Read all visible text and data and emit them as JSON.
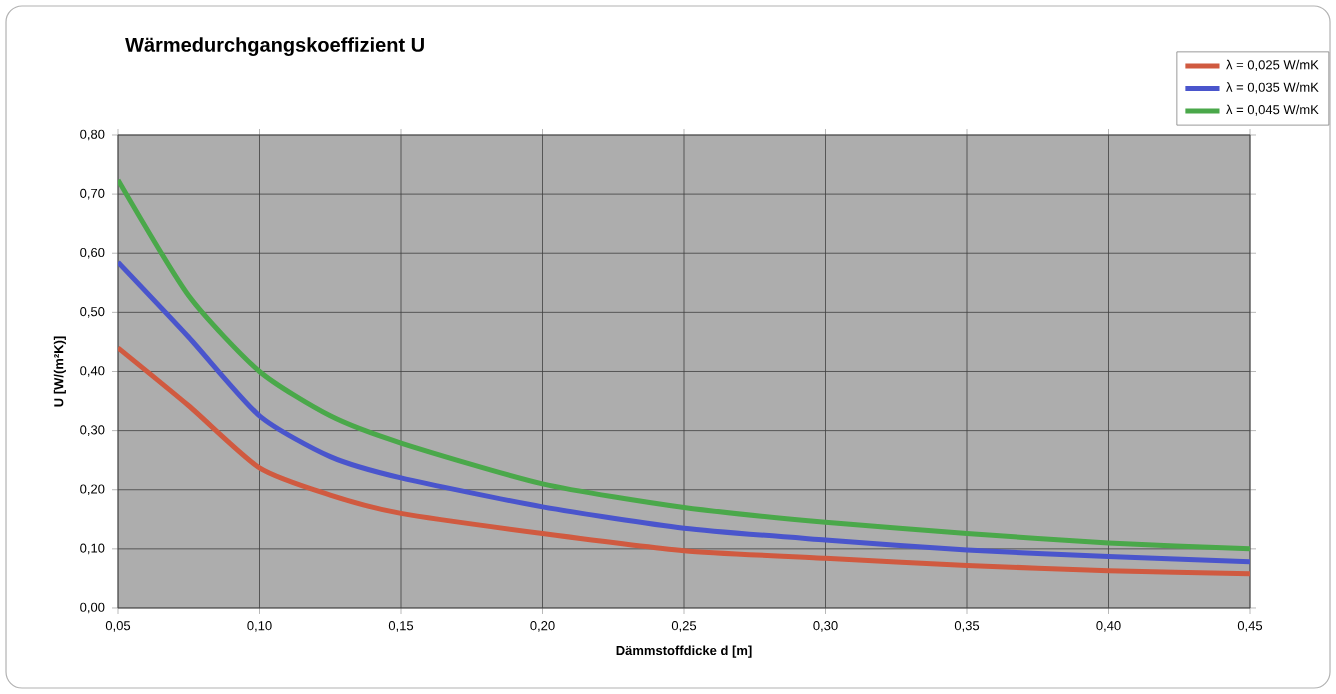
{
  "chart_data": {
    "type": "line",
    "title": "Wärmedurchgangskoeffizient U",
    "xlabel": "Dämmstoffdicke d [m]",
    "ylabel": "U [W/(m²K)]",
    "x": [
      0.05,
      0.075,
      0.1,
      0.125,
      0.15,
      0.2,
      0.25,
      0.3,
      0.35,
      0.4,
      0.45
    ],
    "series": [
      {
        "name": "λ = 0,025 W/mK",
        "color": "#d05a40",
        "values": [
          0.44,
          0.342,
          0.237,
          0.191,
          0.16,
          0.126,
          0.097,
          0.084,
          0.072,
          0.063,
          0.058
        ]
      },
      {
        "name": "λ = 0,035 W/mK",
        "color": "#4a55cc",
        "values": [
          0.585,
          0.458,
          0.325,
          0.256,
          0.22,
          0.171,
          0.135,
          0.115,
          0.098,
          0.087,
          0.078
        ]
      },
      {
        "name": "λ = 0,045 W/mK",
        "color": "#4aa84a",
        "values": [
          0.724,
          0.528,
          0.4,
          0.325,
          0.279,
          0.21,
          0.17,
          0.145,
          0.126,
          0.11,
          0.1
        ]
      }
    ],
    "xlim": [
      0.05,
      0.45
    ],
    "ylim": [
      0,
      0.8
    ],
    "xticks": [
      {
        "value": 0.05,
        "label": "0,05"
      },
      {
        "value": 0.1,
        "label": "0,10"
      },
      {
        "value": 0.15,
        "label": "0,15"
      },
      {
        "value": 0.2,
        "label": "0,20"
      },
      {
        "value": 0.25,
        "label": "0,25"
      },
      {
        "value": 0.3,
        "label": "0,30"
      },
      {
        "value": 0.35,
        "label": "0,35"
      },
      {
        "value": 0.4,
        "label": "0,40"
      },
      {
        "value": 0.45,
        "label": "0,45"
      }
    ],
    "yticks": [
      {
        "value": 0,
        "label": "0,00"
      },
      {
        "value": 0.1,
        "label": "0,10"
      },
      {
        "value": 0.2,
        "label": "0,20"
      },
      {
        "value": 0.3,
        "label": "0,30"
      },
      {
        "value": 0.4,
        "label": "0,40"
      },
      {
        "value": 0.5,
        "label": "0,50"
      },
      {
        "value": 0.6,
        "label": "0,60"
      },
      {
        "value": 0.7,
        "label": "0,70"
      },
      {
        "value": 0.8,
        "label": "0,80"
      }
    ],
    "grid": true,
    "legend": "top right",
    "marker": "none",
    "line_style": "solid"
  }
}
